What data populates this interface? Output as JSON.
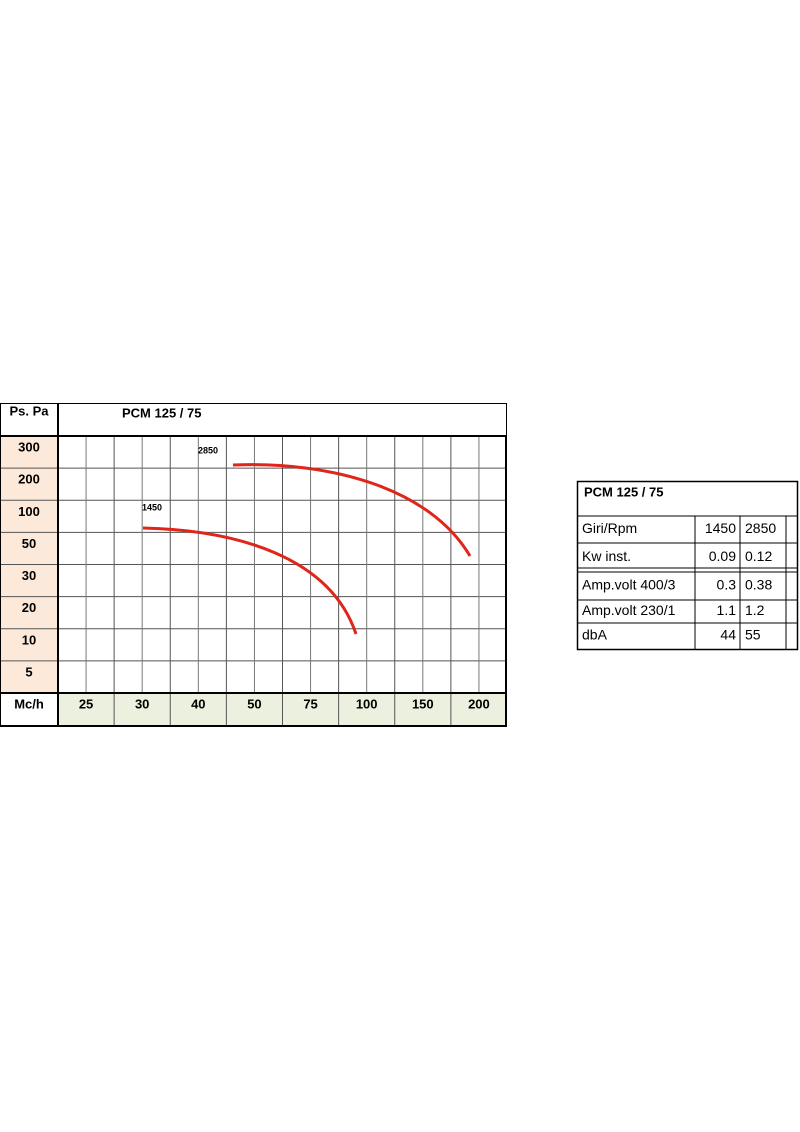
{
  "chart": {
    "y_header": "Ps. Pa",
    "title": "PCM 125 / 75",
    "y_labels": [
      300,
      200,
      100,
      50,
      30,
      20,
      10,
      5
    ],
    "x_header": "Mc/h",
    "x_labels": [
      25,
      30,
      40,
      50,
      75,
      100,
      150,
      200
    ],
    "curve_labels": [
      1450,
      2850
    ]
  },
  "table": {
    "title": "PCM 125 / 75",
    "rows": [
      [
        "Giri/Rpm",
        1450,
        2850
      ],
      [
        "Kw inst.",
        0.09,
        0.12
      ],
      [
        "Amp.volt 400/3",
        0.3,
        0.38
      ],
      [
        "Amp.volt 230/1",
        1.1,
        1.2
      ],
      [
        "dbA",
        44,
        55
      ]
    ]
  }
}
